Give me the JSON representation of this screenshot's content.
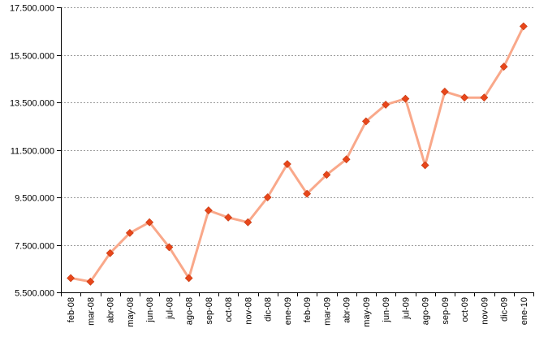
{
  "chart_data": {
    "type": "line",
    "categories": [
      "feb-08",
      "mar-08",
      "abr-08",
      "may-08",
      "jun-08",
      "jul-08",
      "ago-08",
      "sep-08",
      "oct-08",
      "nov-08",
      "dic-08",
      "ene-09",
      "feb-09",
      "mar-09",
      "abr-09",
      "may-09",
      "jun-09",
      "jul-09",
      "ago-09",
      "sep-09",
      "oct-09",
      "nov-09",
      "dic-09",
      "ene-10"
    ],
    "series": [
      {
        "values": [
          6100000,
          5950000,
          7150000,
          8000000,
          8450000,
          7400000,
          6100000,
          8950000,
          8650000,
          8450000,
          9500000,
          10900000,
          9650000,
          10450000,
          11100000,
          12700000,
          13400000,
          13650000,
          10850000,
          13950000,
          13700000,
          13700000,
          15000000,
          16700000
        ]
      }
    ],
    "yticks": [
      "5.500.000",
      "7.500.000",
      "9.500.000",
      "11.500.000",
      "13.500.000",
      "15.500.000",
      "17.500.000"
    ],
    "ylim": [
      5500000,
      17500000
    ],
    "title": "",
    "xlabel": "",
    "ylabel": "",
    "grid": "horizontal dashed",
    "legend": "none",
    "line_color": "#F9A88A",
    "marker_color": "#E8461A"
  }
}
